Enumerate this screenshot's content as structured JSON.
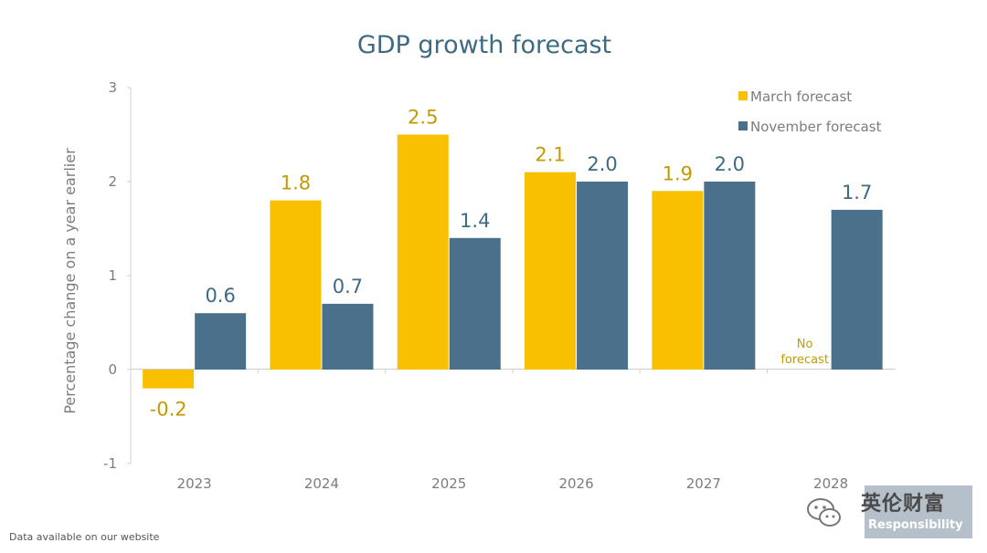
{
  "chart_data": {
    "type": "bar",
    "title": "GDP growth forecast",
    "ylabel": "Percentage change on a year earlier",
    "xlabel": "",
    "ylim": [
      -1,
      3
    ],
    "yticks": [
      3,
      2,
      1,
      0,
      -1
    ],
    "categories": [
      "2023",
      "2024",
      "2025",
      "2026",
      "2027",
      "2028"
    ],
    "series": [
      {
        "name": "March forecast",
        "color": "#f8c000",
        "label_color": "#c49a00",
        "values": [
          -0.2,
          1.8,
          2.5,
          2.1,
          1.9,
          null
        ],
        "labels": [
          "-0.2",
          "1.8",
          "2.5",
          "2.1",
          "1.9",
          null
        ]
      },
      {
        "name": "November forecast",
        "color": "#4a708b",
        "label_color": "#3e6a83",
        "values": [
          0.6,
          0.7,
          1.4,
          2.0,
          2.0,
          1.7
        ],
        "labels": [
          "0.6",
          "0.7",
          "1.4",
          "2.0",
          "2.0",
          "1.7"
        ]
      }
    ],
    "annotations": [
      {
        "category": "2028",
        "series": "March forecast",
        "lines": [
          "No",
          "forecast"
        ]
      }
    ],
    "legend_position": "top-right"
  },
  "footer": {
    "text": "Data available on our website"
  },
  "watermark": {
    "text": "英伦财富",
    "sub": "Responsibility",
    "icon": "wechat-icon"
  }
}
